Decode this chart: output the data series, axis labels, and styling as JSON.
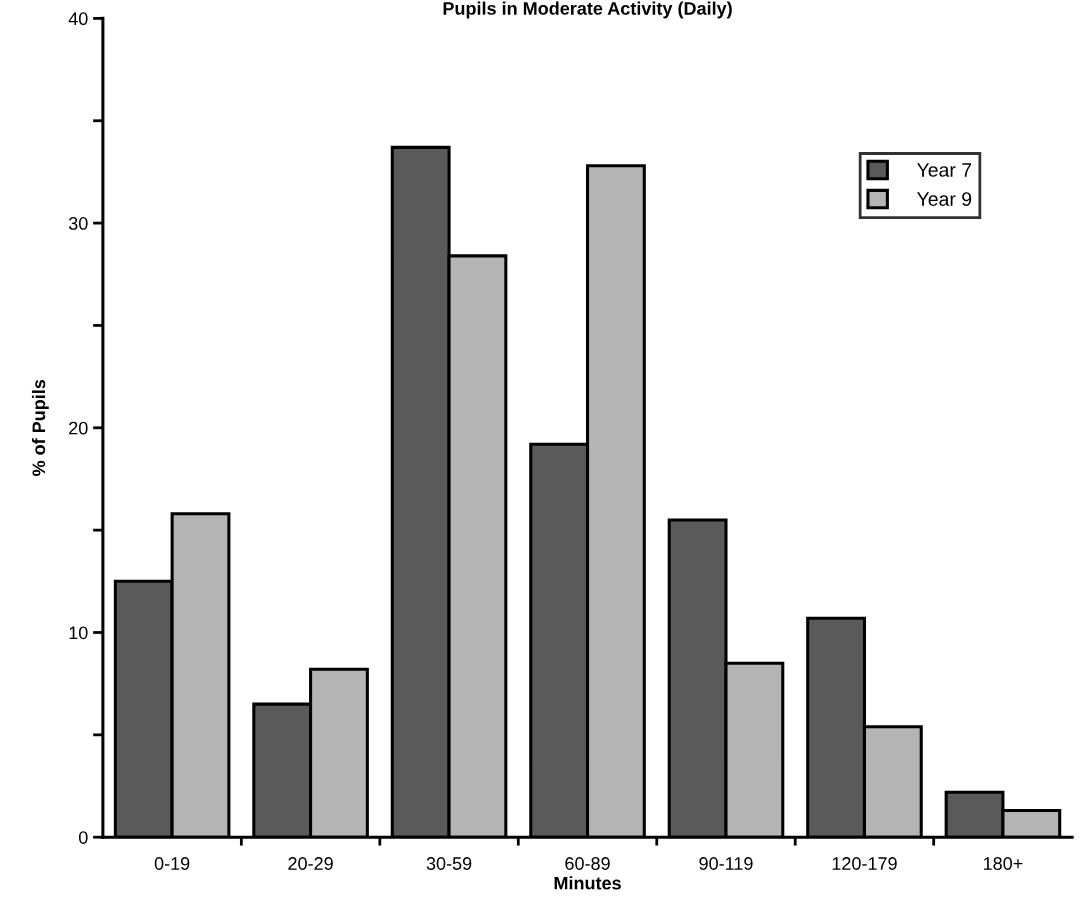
{
  "chart_data": {
    "type": "bar",
    "title": "Pupils in Moderate Activity (Daily)",
    "xlabel": "Minutes",
    "ylabel": "% of Pupils",
    "categories": [
      "0-19",
      "20-29",
      "30-59",
      "60-89",
      "90-119",
      "120-179",
      "180+"
    ],
    "series": [
      {
        "name": "Year 7",
        "color": "#5a5a5a",
        "values": [
          12.5,
          6.5,
          33.7,
          19.2,
          15.5,
          10.7,
          2.2
        ]
      },
      {
        "name": "Year 9",
        "color": "#b4b4b4",
        "values": [
          15.8,
          8.2,
          28.4,
          32.8,
          8.5,
          5.4,
          1.3
        ]
      }
    ],
    "ylim": [
      0,
      40
    ],
    "yticks": [
      0,
      {
        "value": 5,
        "label": null
      },
      10,
      {
        "value": 15,
        "label": null
      },
      20,
      {
        "value": 25,
        "label": null
      },
      30,
      {
        "value": 35,
        "label": null
      },
      40
    ],
    "grid": false,
    "legend": "top right"
  }
}
